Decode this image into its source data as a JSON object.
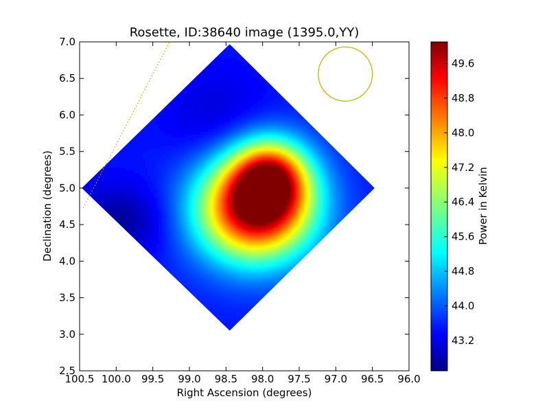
{
  "chart_data": {
    "type": "heatmap",
    "title": "Rosette, ID:38640 image (1395.0,YY)",
    "xlabel": "Right Ascension (degrees)",
    "ylabel": "Declination (degrees)",
    "xlim": [
      100.5,
      96.0
    ],
    "ylim": [
      2.5,
      7.0
    ],
    "x_ticks": [
      "100.5",
      "100.0",
      "99.5",
      "99.0",
      "98.5",
      "98.0",
      "97.5",
      "97.0",
      "96.5",
      "96.0"
    ],
    "y_ticks": [
      "2.5",
      "3.0",
      "3.5",
      "4.0",
      "4.5",
      "5.0",
      "5.5",
      "6.0",
      "6.5",
      "7.0"
    ],
    "colorbar": {
      "label": "Power in Kelvin",
      "range": [
        42.5,
        50.1
      ],
      "ticks": [
        "43.2",
        "44.0",
        "44.8",
        "45.6",
        "46.4",
        "47.2",
        "48.0",
        "48.8",
        "49.6"
      ],
      "colormap": "jet"
    },
    "map_extent_ra": [
      100.47,
      96.47
    ],
    "map_extent_dec": [
      3.05,
      6.97
    ],
    "map_center": {
      "ra": 98.45,
      "dec": 5.0
    },
    "background_level": 43.6,
    "features": [
      {
        "kind": "peak",
        "ra": 98.1,
        "dec": 4.72,
        "value": 50.0,
        "sigma_ra": 0.55,
        "sigma_dec": 0.5
      },
      {
        "kind": "bright_ridge",
        "ra": 97.9,
        "dec": 5.15,
        "value": 47.6,
        "sigma_ra": 0.35,
        "sigma_dec": 0.35
      },
      {
        "kind": "cold_spot",
        "ra": 99.95,
        "dec": 4.55,
        "value": 42.7,
        "sigma_ra": 0.45,
        "sigma_dec": 0.35
      },
      {
        "kind": "cold_spot",
        "ra": 98.6,
        "dec": 5.9,
        "value": 43.1,
        "sigma_ra": 0.5,
        "sigma_dec": 0.5
      }
    ],
    "beam_circle": {
      "ra": 96.87,
      "dec": 6.56,
      "radius_deg": 0.37,
      "color": "#c8b400"
    },
    "dotted_line": {
      "from": {
        "ra": 100.45,
        "dec": 4.73
      },
      "to": {
        "ra": 99.27,
        "dec": 7.0
      },
      "color": "#b5b000"
    }
  }
}
